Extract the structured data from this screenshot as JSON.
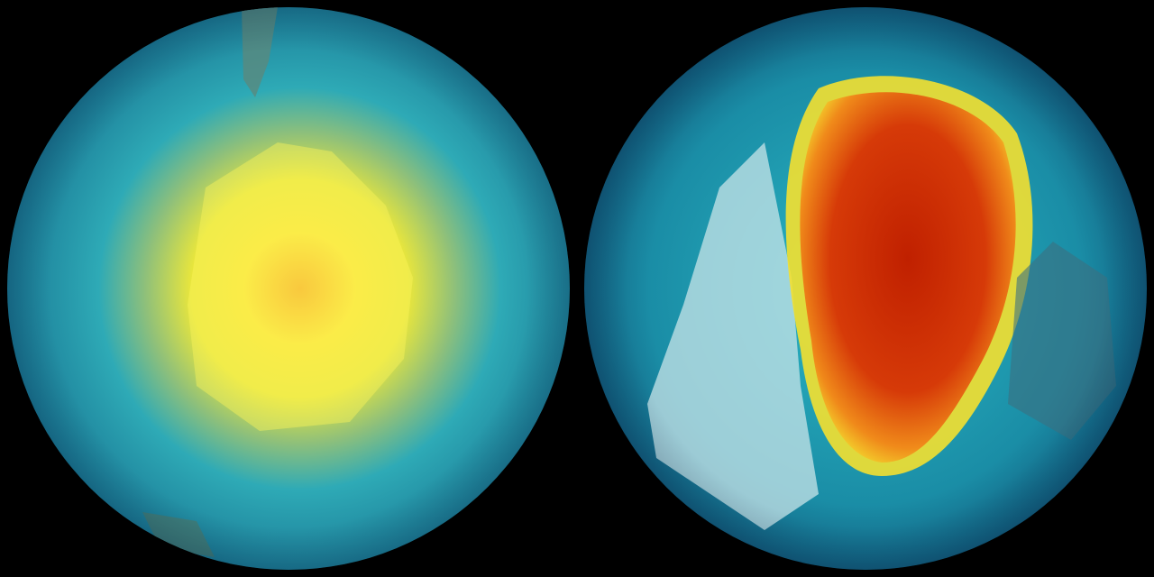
{
  "colors": {
    "background": "#000000",
    "ocean": "#1d9bb0",
    "ozone_low": "#d62800",
    "ozone_mid": "#f2e22a",
    "ozone_high": "#16a5b8",
    "land": "#b9d7dc"
  },
  "globes": [
    {
      "id": "left-globe",
      "description_visible": false
    },
    {
      "id": "right-globe",
      "description_visible": false
    }
  ]
}
